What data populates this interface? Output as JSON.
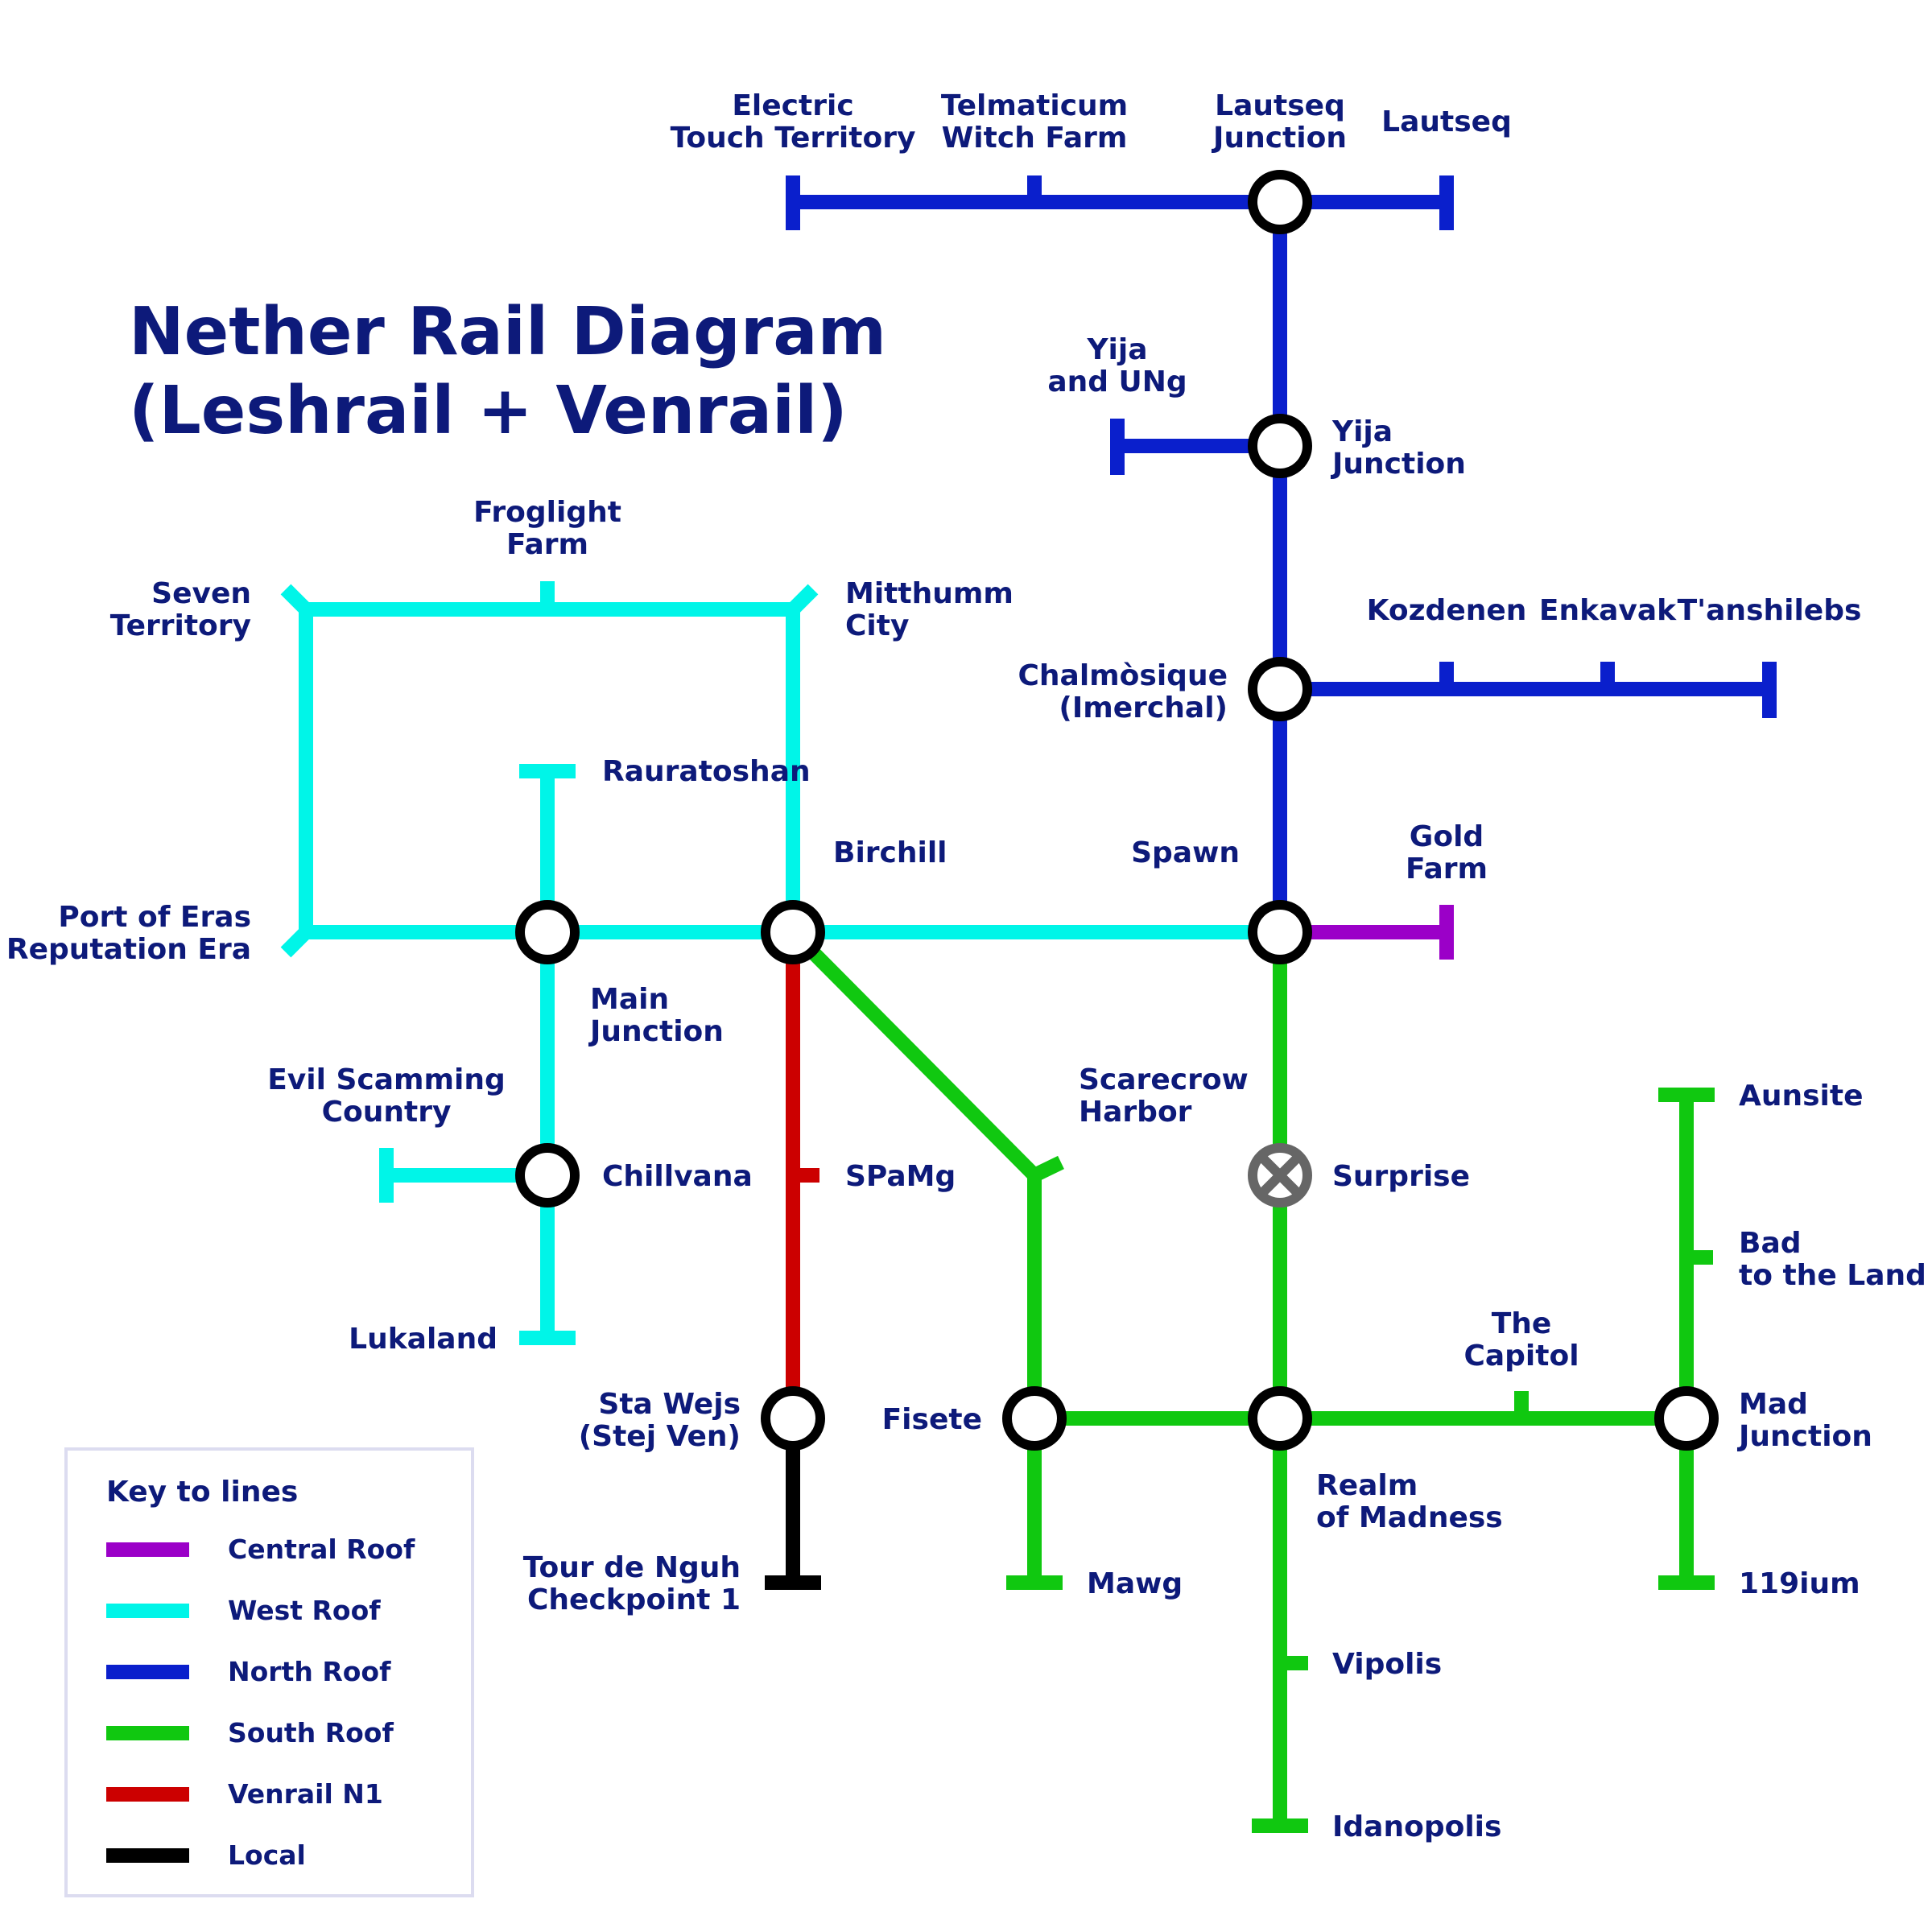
{
  "title": {
    "line1": "Nether Rail Diagram",
    "line2": "(Leshrail + Venrail)"
  },
  "colors": {
    "text": "#0d1a7a",
    "central": "#9b00c8",
    "west": "#00f5e8",
    "north": "#0a1fcc",
    "south": "#10c810",
    "venrail": "#cc0000",
    "local": "#000000",
    "closed_station": "#666666",
    "legend_border": "#dcdcf0"
  },
  "legend": {
    "title": "Key to lines",
    "items": [
      {
        "label": "Central Roof",
        "color": "#9b00c8"
      },
      {
        "label": "West Roof",
        "color": "#00f5e8"
      },
      {
        "label": "North Roof",
        "color": "#0a1fcc"
      },
      {
        "label": "South Roof",
        "color": "#10c810"
      },
      {
        "label": "Venrail N1",
        "color": "#cc0000"
      },
      {
        "label": "Local",
        "color": "#000000"
      }
    ]
  },
  "stations": {
    "electric_touch": [
      "Electric",
      "Touch Territory"
    ],
    "telmaticum": [
      "Telmaticum",
      "Witch Farm"
    ],
    "lautseq_junction": [
      "Lautseq",
      "Junction"
    ],
    "lautseq": [
      "Lautseq"
    ],
    "yija_ung": [
      "Yija",
      "and UNg"
    ],
    "yija_junction": [
      "Yija",
      "Junction"
    ],
    "kozdenen": [
      "Kozdenen"
    ],
    "enkavak": [
      "Enkavak"
    ],
    "tanshilebs": [
      "T'anshilebs"
    ],
    "chalmosique": [
      "Chalmòsique",
      "(Imerchal)"
    ],
    "froglight": [
      "Froglight",
      "Farm"
    ],
    "seven_territory": [
      "Seven",
      "Territory"
    ],
    "mitthumm": [
      "Mitthumm",
      "City"
    ],
    "rauratoshan": [
      "Rauratoshan"
    ],
    "birchill": [
      "Birchill"
    ],
    "spawn": [
      "Spawn"
    ],
    "gold_farm": [
      "Gold",
      "Farm"
    ],
    "port_of_eras": [
      "Port of Eras",
      "Reputation Era"
    ],
    "main_junction": [
      "Main",
      "Junction"
    ],
    "evil_scamming": [
      "Evil Scamming",
      "Country"
    ],
    "chillvana": [
      "Chillvana"
    ],
    "lukaland": [
      "Lukaland"
    ],
    "spamg": [
      "SPaMg"
    ],
    "scarecrow": [
      "Scarecrow",
      "Harbor"
    ],
    "surprise": [
      "Surprise"
    ],
    "aunsite": [
      "Aunsite"
    ],
    "bad_land": [
      "Bad",
      "to the Land"
    ],
    "the_capitol": [
      "The",
      "Capitol"
    ],
    "sta_wejs": [
      "Sta Wejs",
      "(Stej Ven)"
    ],
    "fisete": [
      "Fisete"
    ],
    "mad_junction": [
      "Mad",
      "Junction"
    ],
    "realm_madness": [
      "Realm",
      "of Madness"
    ],
    "tour_de_nguh": [
      "Tour de Nguh",
      "Checkpoint 1"
    ],
    "mawg": [
      "Mawg"
    ],
    "ium119": [
      "119ium"
    ],
    "vipolis": [
      "Vipolis"
    ],
    "idanopolis": [
      "Idanopolis"
    ]
  }
}
